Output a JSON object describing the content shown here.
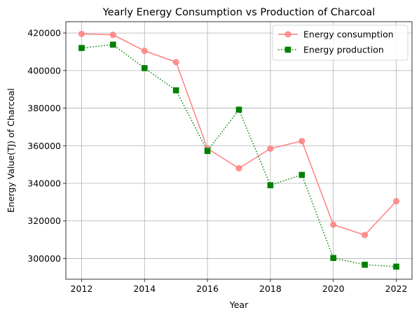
{
  "chart_data": {
    "type": "line",
    "title": "Yearly Energy Consumption vs Production of Charcoal",
    "xlabel": "Year",
    "ylabel": "Energy Value(TJ) of Charcoal",
    "x": [
      2012,
      2013,
      2014,
      2015,
      2016,
      2017,
      2018,
      2019,
      2020,
      2021,
      2022
    ],
    "xticks": [
      2012,
      2014,
      2016,
      2018,
      2020,
      2022
    ],
    "yticks": [
      300000,
      320000,
      340000,
      360000,
      380000,
      400000,
      420000
    ],
    "xlim": [
      2011.5,
      2022.5
    ],
    "ylim": [
      289000,
      426000
    ],
    "grid": true,
    "legend_position": "top-right",
    "series": [
      {
        "name": "Energy consumption",
        "color": "#ff8080",
        "line_style": "solid",
        "marker": "circle",
        "values": [
          419500,
          419000,
          410500,
          404500,
          358500,
          348000,
          358500,
          362500,
          318000,
          312500,
          330500
        ]
      },
      {
        "name": "Energy production",
        "color": "#008000",
        "line_style": "dotted",
        "marker": "square",
        "values": [
          412000,
          413800,
          401300,
          389500,
          357200,
          379200,
          339000,
          344500,
          300300,
          296700,
          295700
        ]
      }
    ]
  }
}
